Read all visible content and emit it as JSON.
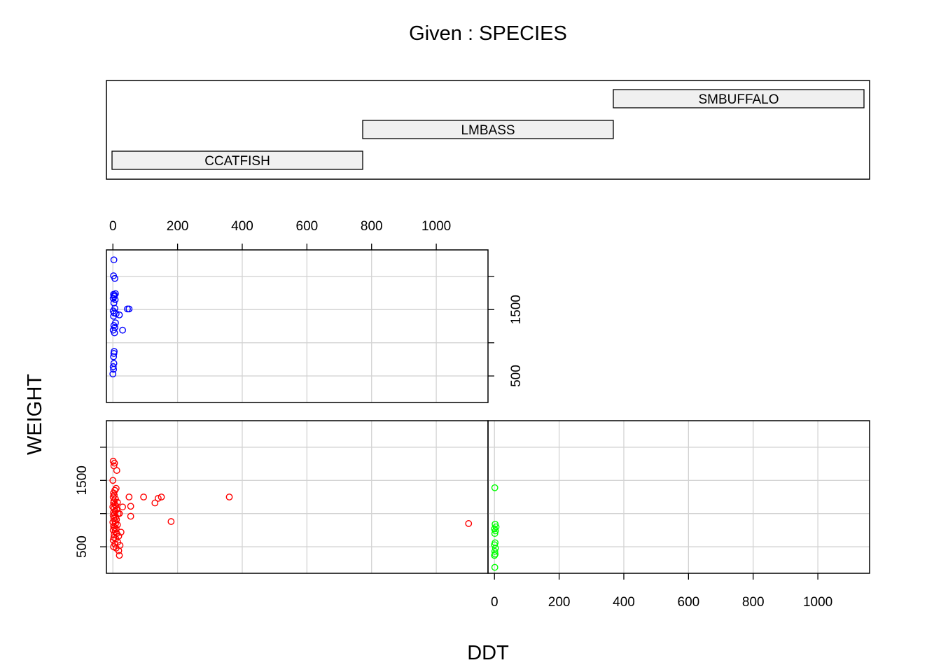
{
  "chart_data": {
    "type": "scatter",
    "given_title": "Given : SPECIES",
    "xlabel": "DDT",
    "ylabel": "WEIGHT",
    "xlim": [
      -20,
      1160
    ],
    "ylim": [
      100,
      2400
    ],
    "x_ticks": [
      0,
      200,
      400,
      600,
      800,
      1000
    ],
    "x_tick_labels": [
      "0",
      "200",
      "400",
      "600",
      "800",
      "1000"
    ],
    "y_ticks": [
      500,
      1000,
      1500,
      2000
    ],
    "y_tick_labels": [
      "500",
      "",
      "1500",
      ""
    ],
    "grid": true,
    "given": {
      "variable": "SPECIES",
      "levels": [
        "CCATFISH",
        "LMBASS",
        "SMBUFFALO"
      ]
    },
    "panels": [
      {
        "level": "CCATFISH",
        "color": "#FF0000",
        "points": [
          [
            1,
            1790
          ],
          [
            5,
            1760
          ],
          [
            3,
            1720
          ],
          [
            12,
            1650
          ],
          [
            0,
            1500
          ],
          [
            10,
            1380
          ],
          [
            6,
            1350
          ],
          [
            2,
            1310
          ],
          [
            4,
            1280
          ],
          [
            1,
            1250
          ],
          [
            8,
            1220
          ],
          [
            3,
            1190
          ],
          [
            14,
            1170
          ],
          [
            2,
            1160
          ],
          [
            6,
            1140
          ],
          [
            9,
            1120
          ],
          [
            0,
            1100
          ],
          [
            4,
            1080
          ],
          [
            12,
            1060
          ],
          [
            7,
            1040
          ],
          [
            2,
            1020
          ],
          [
            16,
            1000
          ],
          [
            5,
            990
          ],
          [
            1,
            970
          ],
          [
            9,
            950
          ],
          [
            3,
            930
          ],
          [
            11,
            910
          ],
          [
            6,
            890
          ],
          [
            0,
            870
          ],
          [
            8,
            850
          ],
          [
            14,
            830
          ],
          [
            2,
            810
          ],
          [
            5,
            790
          ],
          [
            10,
            770
          ],
          [
            1,
            750
          ],
          [
            7,
            730
          ],
          [
            12,
            700
          ],
          [
            4,
            680
          ],
          [
            18,
            660
          ],
          [
            3,
            640
          ],
          [
            9,
            620
          ],
          [
            1,
            600
          ],
          [
            15,
            570
          ],
          [
            6,
            540
          ],
          [
            22,
            520
          ],
          [
            2,
            500
          ],
          [
            10,
            480
          ],
          [
            18,
            440
          ],
          [
            20,
            370
          ],
          [
            25,
            720
          ],
          [
            20,
            1000
          ],
          [
            30,
            1100
          ],
          [
            50,
            1250
          ],
          [
            55,
            1110
          ],
          [
            55,
            960
          ],
          [
            95,
            1250
          ],
          [
            130,
            1160
          ],
          [
            140,
            1230
          ],
          [
            150,
            1250
          ],
          [
            180,
            880
          ],
          [
            360,
            1250
          ],
          [
            1100,
            850
          ]
        ]
      },
      {
        "level": "LMBASS",
        "color": "#0000FF",
        "points": [
          [
            3,
            2250
          ],
          [
            2,
            2010
          ],
          [
            6,
            1970
          ],
          [
            2,
            1730
          ],
          [
            5,
            1720
          ],
          [
            8,
            1740
          ],
          [
            4,
            1700
          ],
          [
            1,
            1670
          ],
          [
            7,
            1650
          ],
          [
            3,
            1600
          ],
          [
            6,
            1520
          ],
          [
            1,
            1480
          ],
          [
            4,
            1450
          ],
          [
            10,
            1440
          ],
          [
            20,
            1420
          ],
          [
            2,
            1400
          ],
          [
            45,
            1510
          ],
          [
            50,
            1510
          ],
          [
            8,
            1300
          ],
          [
            3,
            1260
          ],
          [
            6,
            1230
          ],
          [
            30,
            1190
          ],
          [
            1,
            1190
          ],
          [
            5,
            1150
          ],
          [
            4,
            870
          ],
          [
            3,
            840
          ],
          [
            2,
            790
          ],
          [
            3,
            690
          ],
          [
            1,
            640
          ],
          [
            2,
            600
          ],
          [
            0,
            530
          ]
        ]
      },
      {
        "level": "SMBUFFALO",
        "color": "#00FF00",
        "points": [
          [
            1,
            1390
          ],
          [
            2,
            840
          ],
          [
            5,
            800
          ],
          [
            0,
            770
          ],
          [
            3,
            740
          ],
          [
            1,
            700
          ],
          [
            2,
            560
          ],
          [
            0,
            530
          ],
          [
            3,
            480
          ],
          [
            1,
            430
          ],
          [
            2,
            390
          ],
          [
            0,
            370
          ],
          [
            1,
            190
          ]
        ]
      }
    ]
  }
}
